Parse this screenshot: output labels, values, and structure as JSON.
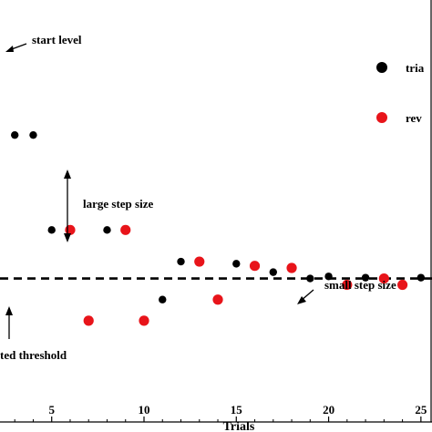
{
  "chart_data": {
    "type": "scatter",
    "xlabel": "Trials",
    "ylabel": "",
    "xlim": [
      2.2,
      25.6
    ],
    "ylim": [
      0,
      10
    ],
    "x_ticks": [
      5,
      10,
      15,
      20,
      25
    ],
    "x_tick_labels": [
      "5",
      "10",
      "15",
      "20",
      "25"
    ],
    "grid": false,
    "legend_position": "top-right",
    "threshold": {
      "value": 3.4,
      "style": "dashed",
      "label": "ted threshold"
    },
    "series": [
      {
        "name": "tria",
        "color": "#000000",
        "x": [
          3,
          4,
          5,
          8,
          11,
          12,
          15,
          17,
          19,
          20,
          22,
          25
        ],
        "y": [
          6.8,
          6.8,
          4.55,
          4.55,
          2.9,
          3.8,
          3.75,
          3.55,
          3.4,
          3.45,
          3.42,
          3.42
        ]
      },
      {
        "name": "rev",
        "color": "#e8141a",
        "x": [
          6,
          7,
          9,
          10,
          13,
          14,
          16,
          18,
          21,
          23,
          24
        ],
        "y": [
          4.55,
          2.4,
          4.55,
          2.4,
          3.8,
          2.9,
          3.7,
          3.65,
          3.25,
          3.4,
          3.25
        ]
      }
    ],
    "annotations": [
      {
        "text": "start level",
        "arrow": "points-down-left"
      },
      {
        "text": "large step size",
        "arrow": "double-vertical"
      },
      {
        "text": "small step size",
        "arrow": "points-down-left"
      },
      {
        "text": "ted threshold",
        "arrow": "points-up"
      }
    ]
  }
}
